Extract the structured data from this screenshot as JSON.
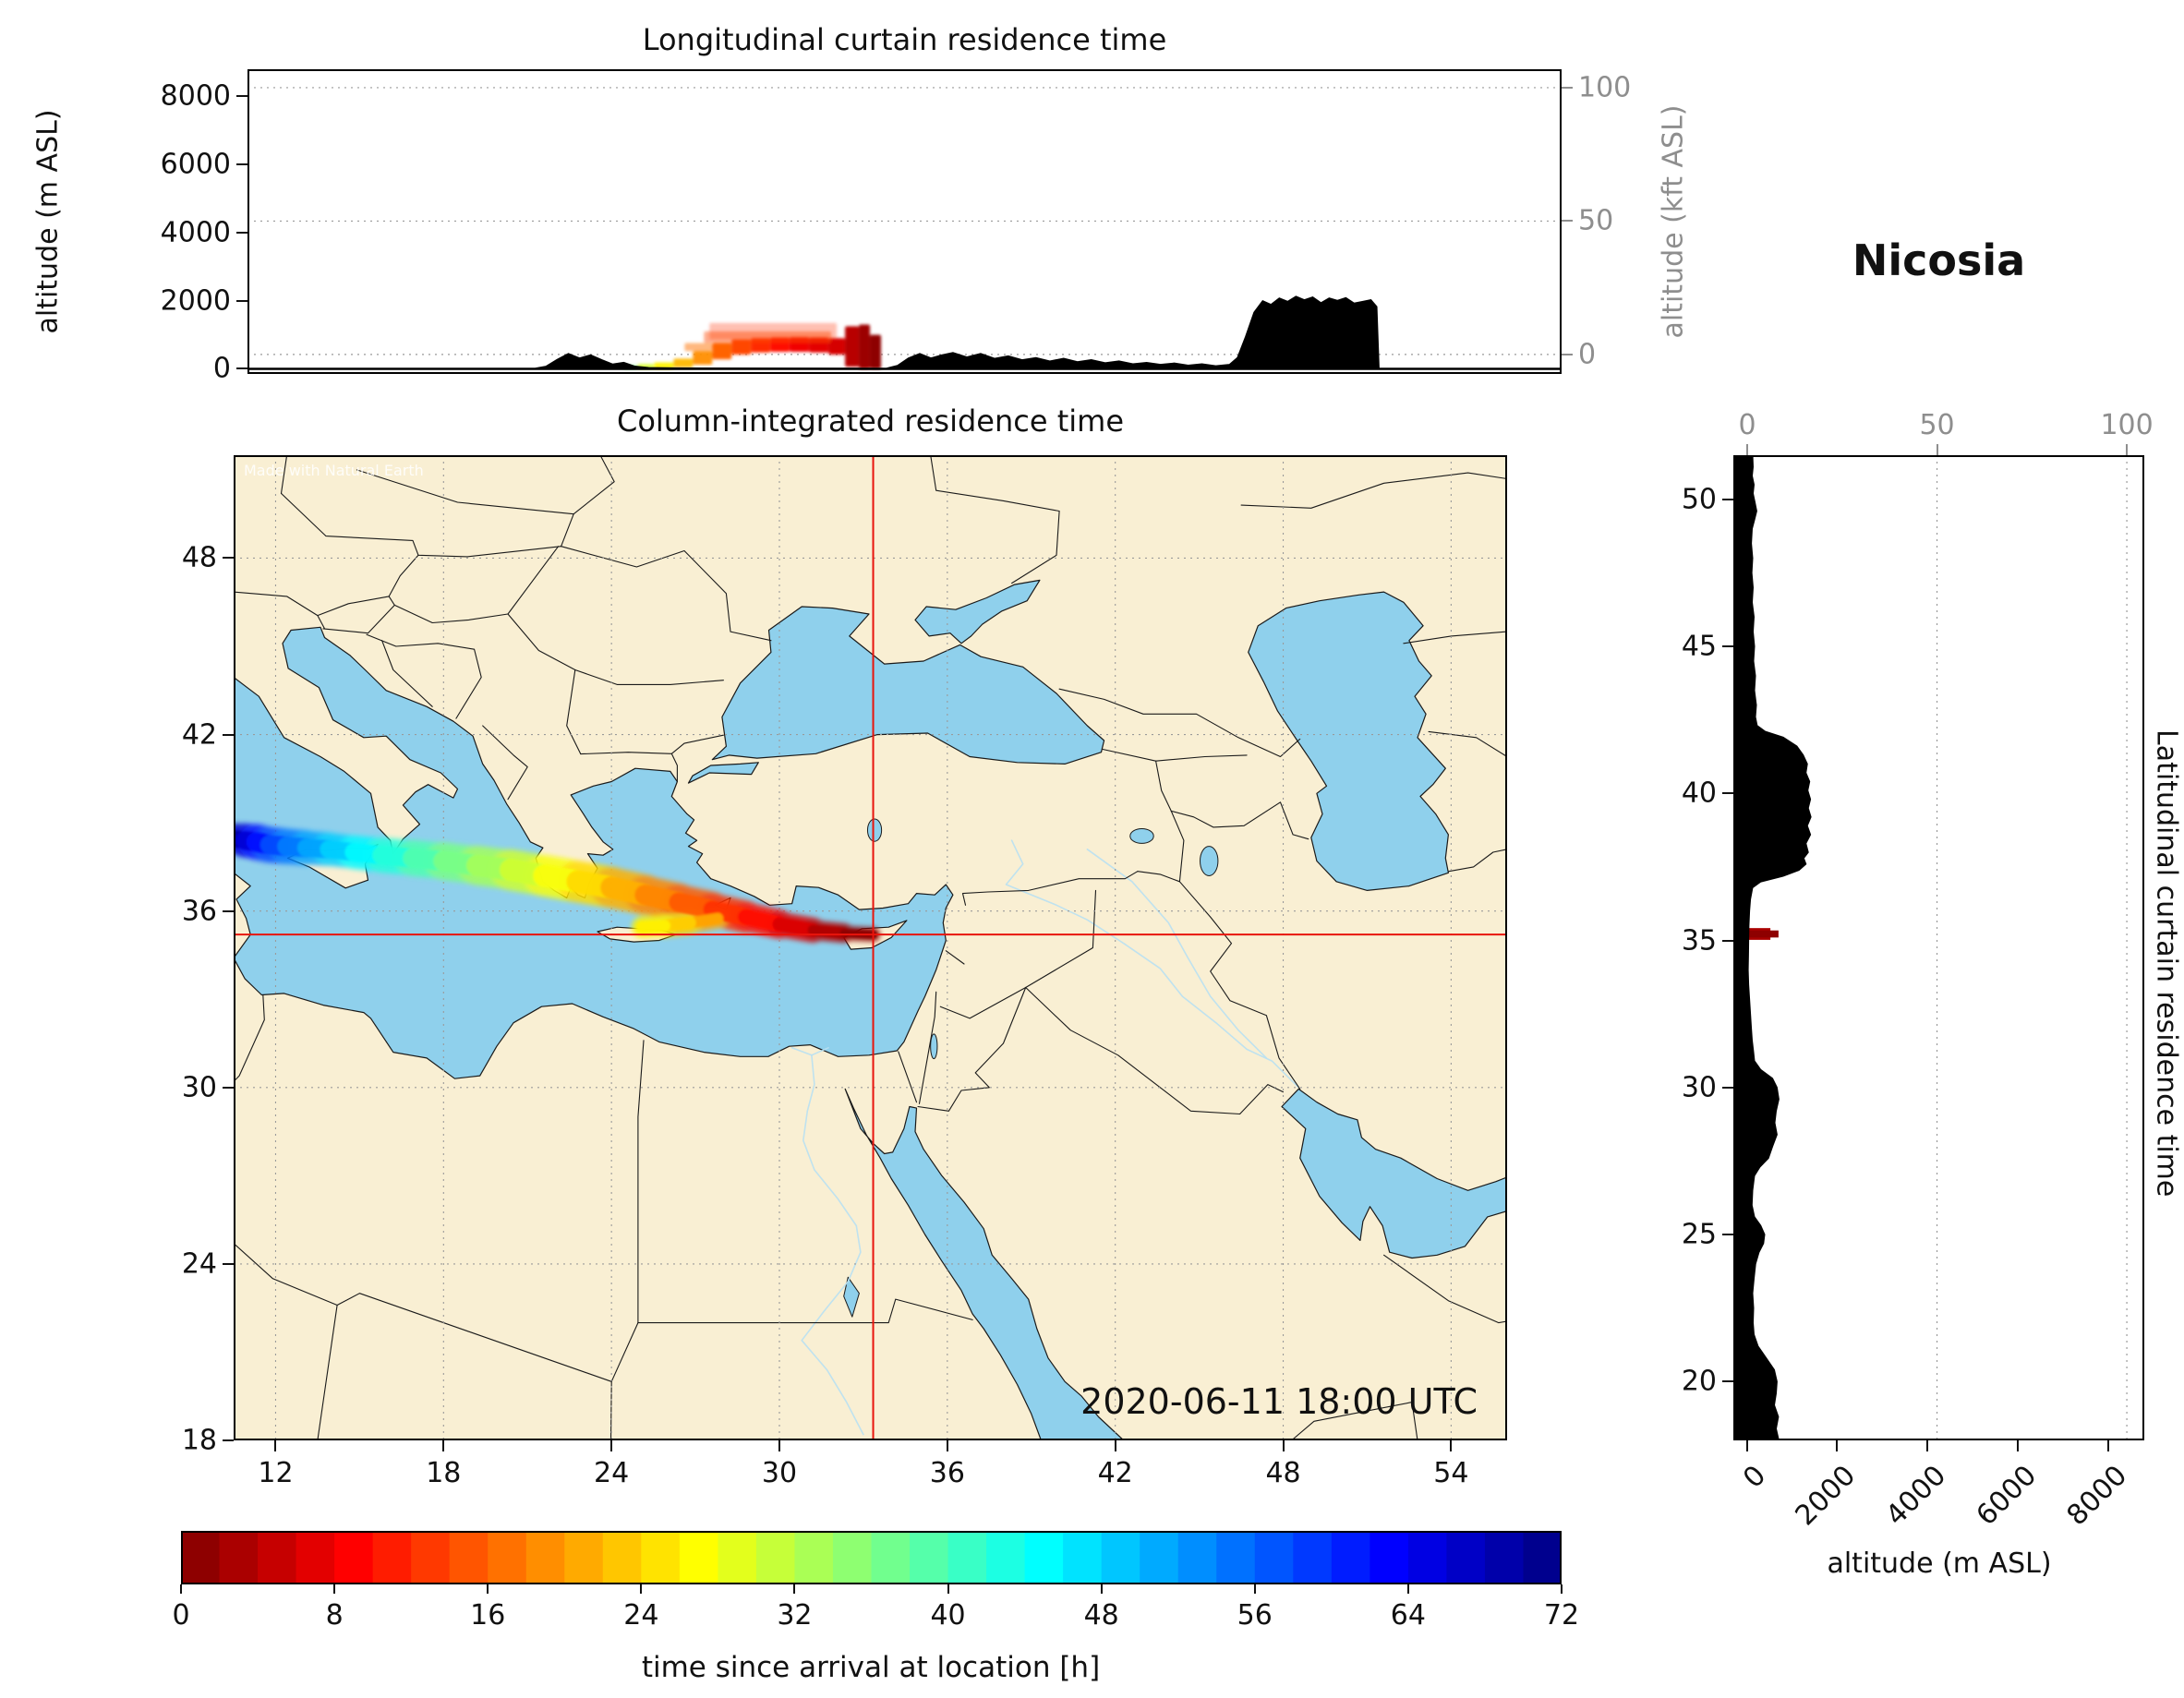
{
  "title_labels": {
    "station": "Nicosia",
    "long_title": "Longitudinal curtain residence time",
    "map_title": "Column-integrated residence time",
    "lat_title": "Latitudinal curtain residence time",
    "alt_m_label": "altitude (m ASL)",
    "alt_kft_label": "altitude (kft ASL)",
    "alt_m_label_lat": "altitude (m ASL)",
    "colorbar_label": "time since arrival at location [h]",
    "datetime": "2020-06-11 18:00 UTC",
    "attribution": "Made with Natural Earth"
  },
  "colors": {
    "land": "#f9efd3",
    "water": "#8fd0ec",
    "terrain": "#000000",
    "crosshair": "#e8140c",
    "grid": "#9a9a9a",
    "secondary_axis": "#8e8e8e",
    "border_line": "#1a1a1a",
    "river": "#b8e0f2"
  },
  "chart_data": [
    {
      "id": "longitudinal_curtain",
      "type": "area",
      "title": "Longitudinal curtain residence time",
      "x_range_lon": [
        10.5,
        58
      ],
      "y_axis_left": {
        "label": "altitude (m ASL)",
        "ticks": [
          0,
          2000,
          4000,
          6000,
          8000
        ],
        "range": [
          -150,
          8800
        ]
      },
      "y_axis_right": {
        "label": "altitude (kft ASL)",
        "ticks": [
          0,
          50,
          100
        ],
        "range": [
          -7.3,
          106.9
        ]
      },
      "terrain_profile": [
        [
          10.5,
          0
        ],
        [
          20.9,
          0
        ],
        [
          21.3,
          60
        ],
        [
          21.7,
          260
        ],
        [
          22.1,
          430
        ],
        [
          22.5,
          300
        ],
        [
          22.9,
          390
        ],
        [
          23.3,
          250
        ],
        [
          23.7,
          120
        ],
        [
          24.1,
          170
        ],
        [
          24.5,
          60
        ],
        [
          25.0,
          20
        ],
        [
          26.0,
          10
        ],
        [
          27.0,
          5
        ],
        [
          33.6,
          0
        ],
        [
          34.0,
          80
        ],
        [
          34.4,
          300
        ],
        [
          34.8,
          430
        ],
        [
          35.2,
          300
        ],
        [
          35.6,
          390
        ],
        [
          36.0,
          460
        ],
        [
          36.5,
          330
        ],
        [
          37.0,
          430
        ],
        [
          37.5,
          290
        ],
        [
          38.0,
          360
        ],
        [
          38.5,
          250
        ],
        [
          39.0,
          310
        ],
        [
          39.5,
          210
        ],
        [
          40.0,
          290
        ],
        [
          40.5,
          190
        ],
        [
          41.0,
          250
        ],
        [
          41.5,
          160
        ],
        [
          42.0,
          210
        ],
        [
          42.5,
          130
        ],
        [
          43.0,
          170
        ],
        [
          43.5,
          110
        ],
        [
          44.0,
          150
        ],
        [
          44.5,
          90
        ],
        [
          45.0,
          130
        ],
        [
          45.5,
          70
        ],
        [
          46.0,
          110
        ],
        [
          46.3,
          320
        ],
        [
          46.6,
          950
        ],
        [
          46.9,
          1650
        ],
        [
          47.2,
          1980
        ],
        [
          47.5,
          1870
        ],
        [
          47.8,
          2060
        ],
        [
          48.1,
          1960
        ],
        [
          48.4,
          2110
        ],
        [
          48.7,
          2010
        ],
        [
          49.0,
          2090
        ],
        [
          49.3,
          1920
        ],
        [
          49.6,
          2060
        ],
        [
          49.9,
          1990
        ],
        [
          50.2,
          2070
        ],
        [
          50.5,
          1910
        ],
        [
          50.8,
          1960
        ],
        [
          51.1,
          2010
        ],
        [
          51.3,
          1820
        ],
        [
          51.38,
          0
        ],
        [
          58,
          0
        ]
      ],
      "plume_cells": [
        [
          24.1,
          24.6,
          0,
          100,
          36,
          0.85
        ],
        [
          24.6,
          25.2,
          0,
          140,
          30,
          0.9
        ],
        [
          25.2,
          25.9,
          0,
          190,
          26,
          0.95
        ],
        [
          25.9,
          26.6,
          40,
          300,
          22,
          0.95
        ],
        [
          26.6,
          27.3,
          120,
          520,
          19,
          0.95
        ],
        [
          27.3,
          28.0,
          280,
          760,
          16,
          1
        ],
        [
          28.0,
          28.7,
          420,
          860,
          14,
          1
        ],
        [
          28.7,
          29.4,
          480,
          900,
          12,
          1
        ],
        [
          29.4,
          30.1,
          500,
          920,
          10,
          1
        ],
        [
          30.1,
          30.8,
          500,
          930,
          8,
          1
        ],
        [
          30.8,
          31.5,
          480,
          920,
          7,
          1
        ],
        [
          31.5,
          32.1,
          420,
          900,
          6,
          1
        ],
        [
          32.1,
          32.6,
          60,
          1250,
          4,
          1
        ],
        [
          32.6,
          33.0,
          0,
          1300,
          2,
          1
        ],
        [
          33.0,
          33.4,
          0,
          1000,
          1,
          1
        ],
        [
          27.2,
          31.8,
          860,
          1350,
          12,
          0.3
        ],
        [
          27.0,
          31.6,
          760,
          1100,
          14,
          0.45
        ],
        [
          26.3,
          27.3,
          520,
          760,
          17,
          0.5
        ]
      ]
    },
    {
      "id": "column_map",
      "type": "map",
      "title": "Column-integrated residence time",
      "lon_range": [
        10.5,
        56
      ],
      "lat_range": [
        18,
        51.5
      ],
      "lon_ticks": [
        12,
        18,
        24,
        30,
        36,
        42,
        48,
        54
      ],
      "lat_ticks": [
        18,
        24,
        30,
        36,
        42,
        48
      ],
      "receptor": {
        "lon": 33.35,
        "lat": 35.2
      },
      "datetime": "2020-06-11 18:00 UTC",
      "trajectory": [
        [
          10.6,
          38.45,
          71,
          0.5
        ],
        [
          10.9,
          38.4,
          68,
          0.55
        ],
        [
          11.3,
          38.35,
          64,
          0.6
        ],
        [
          11.8,
          38.25,
          60,
          0.6
        ],
        [
          12.4,
          38.2,
          56,
          0.6
        ],
        [
          13.1,
          38.15,
          53,
          0.58
        ],
        [
          13.9,
          38.1,
          50,
          0.55
        ],
        [
          14.8,
          38.0,
          47,
          0.55
        ],
        [
          15.8,
          37.9,
          44,
          0.58
        ],
        [
          16.9,
          37.8,
          41,
          0.6
        ],
        [
          18.0,
          37.7,
          38,
          0.62
        ],
        [
          19.2,
          37.55,
          35,
          0.65
        ],
        [
          20.4,
          37.4,
          32,
          0.68
        ],
        [
          21.6,
          37.2,
          29,
          0.7
        ],
        [
          22.8,
          37.0,
          26,
          0.7
        ],
        [
          24.0,
          36.8,
          23,
          0.7
        ],
        [
          25.2,
          36.55,
          20,
          0.66
        ],
        [
          26.4,
          36.3,
          17,
          0.62
        ],
        [
          27.6,
          36.05,
          14,
          0.58
        ],
        [
          28.8,
          35.8,
          11,
          0.52
        ],
        [
          30.0,
          35.55,
          8,
          0.46
        ],
        [
          31.2,
          35.35,
          5,
          0.38
        ],
        [
          32.3,
          35.25,
          2,
          0.28
        ],
        [
          33.35,
          35.2,
          0,
          0.2
        ]
      ],
      "trajectory_branch": [
        [
          27.8,
          35.75,
          19,
          0.3
        ],
        [
          26.8,
          35.6,
          22,
          0.38
        ],
        [
          25.9,
          35.5,
          25,
          0.4
        ],
        [
          25.1,
          35.45,
          27,
          0.32
        ]
      ]
    },
    {
      "id": "latitudinal_curtain",
      "type": "area",
      "title": "Latitudinal curtain residence time",
      "x_axis_bottom": {
        "label": "altitude (m ASL)",
        "ticks": [
          0,
          2000,
          4000,
          6000,
          8000
        ],
        "range": [
          -300,
          8800
        ]
      },
      "x_axis_top": {
        "ticks": [
          0,
          50,
          100
        ],
        "range": [
          -3.65,
          104.6
        ]
      },
      "lat_ticks": [
        20,
        25,
        30,
        35,
        40,
        45,
        50
      ],
      "terrain_profile": [
        [
          18,
          700
        ],
        [
          18.4,
          640
        ],
        [
          18.8,
          690
        ],
        [
          19.2,
          600
        ],
        [
          19.6,
          640
        ],
        [
          20.0,
          660
        ],
        [
          20.4,
          600
        ],
        [
          20.8,
          420
        ],
        [
          21.2,
          240
        ],
        [
          21.6,
          150
        ],
        [
          22.0,
          130
        ],
        [
          22.5,
          140
        ],
        [
          23.0,
          120
        ],
        [
          23.5,
          150
        ],
        [
          24.0,
          185
        ],
        [
          24.4,
          260
        ],
        [
          24.7,
          360
        ],
        [
          25.0,
          385
        ],
        [
          25.3,
          300
        ],
        [
          25.6,
          160
        ],
        [
          26.0,
          105
        ],
        [
          26.5,
          120
        ],
        [
          27.0,
          160
        ],
        [
          27.3,
          280
        ],
        [
          27.6,
          470
        ],
        [
          28.0,
          560
        ],
        [
          28.4,
          660
        ],
        [
          28.8,
          610
        ],
        [
          29.2,
          640
        ],
        [
          29.6,
          700
        ],
        [
          30.0,
          660
        ],
        [
          30.3,
          560
        ],
        [
          30.6,
          300
        ],
        [
          30.9,
          160
        ],
        [
          31.2,
          140
        ],
        [
          31.6,
          110
        ],
        [
          32.0,
          90
        ],
        [
          32.5,
          70
        ],
        [
          33.0,
          50
        ],
        [
          33.5,
          30
        ],
        [
          34.0,
          20
        ],
        [
          34.5,
          25
        ],
        [
          35.0,
          30
        ],
        [
          35.5,
          35
        ],
        [
          36.0,
          50
        ],
        [
          36.4,
          70
        ],
        [
          36.8,
          120
        ],
        [
          37.0,
          300
        ],
        [
          37.2,
          800
        ],
        [
          37.4,
          1150
        ],
        [
          37.6,
          1300
        ],
        [
          37.8,
          1250
        ],
        [
          38.0,
          1350
        ],
        [
          38.3,
          1300
        ],
        [
          38.6,
          1400
        ],
        [
          38.9,
          1330
        ],
        [
          39.2,
          1410
        ],
        [
          39.5,
          1350
        ],
        [
          39.8,
          1400
        ],
        [
          40.1,
          1340
        ],
        [
          40.4,
          1380
        ],
        [
          40.7,
          1300
        ],
        [
          41.0,
          1330
        ],
        [
          41.3,
          1240
        ],
        [
          41.6,
          1100
        ],
        [
          41.9,
          800
        ],
        [
          42.1,
          400
        ],
        [
          42.3,
          220
        ],
        [
          42.6,
          180
        ],
        [
          43.0,
          200
        ],
        [
          43.5,
          160
        ],
        [
          44.0,
          180
        ],
        [
          44.5,
          140
        ],
        [
          45.0,
          160
        ],
        [
          45.5,
          130
        ],
        [
          46.0,
          150
        ],
        [
          46.5,
          110
        ],
        [
          47.0,
          130
        ],
        [
          47.5,
          100
        ],
        [
          48.0,
          120
        ],
        [
          48.5,
          90
        ],
        [
          49.0,
          110
        ],
        [
          49.3,
          160
        ],
        [
          49.6,
          210
        ],
        [
          49.9,
          170
        ],
        [
          50.2,
          130
        ],
        [
          50.5,
          150
        ],
        [
          50.8,
          110
        ],
        [
          51.1,
          130
        ],
        [
          51.5,
          120
        ]
      ],
      "plume_cells": [
        [
          35.02,
          35.42,
          0,
          520,
          3
        ],
        [
          35.1,
          35.34,
          0,
          700,
          1
        ]
      ]
    },
    {
      "id": "colorbar",
      "type": "colorbar",
      "label": "time since arrival at location [h]",
      "ticks": [
        0,
        8,
        16,
        24,
        32,
        40,
        48,
        56,
        64,
        72
      ],
      "range": [
        0,
        72
      ],
      "n_segments": 36,
      "colormap": "jet_r"
    }
  ]
}
